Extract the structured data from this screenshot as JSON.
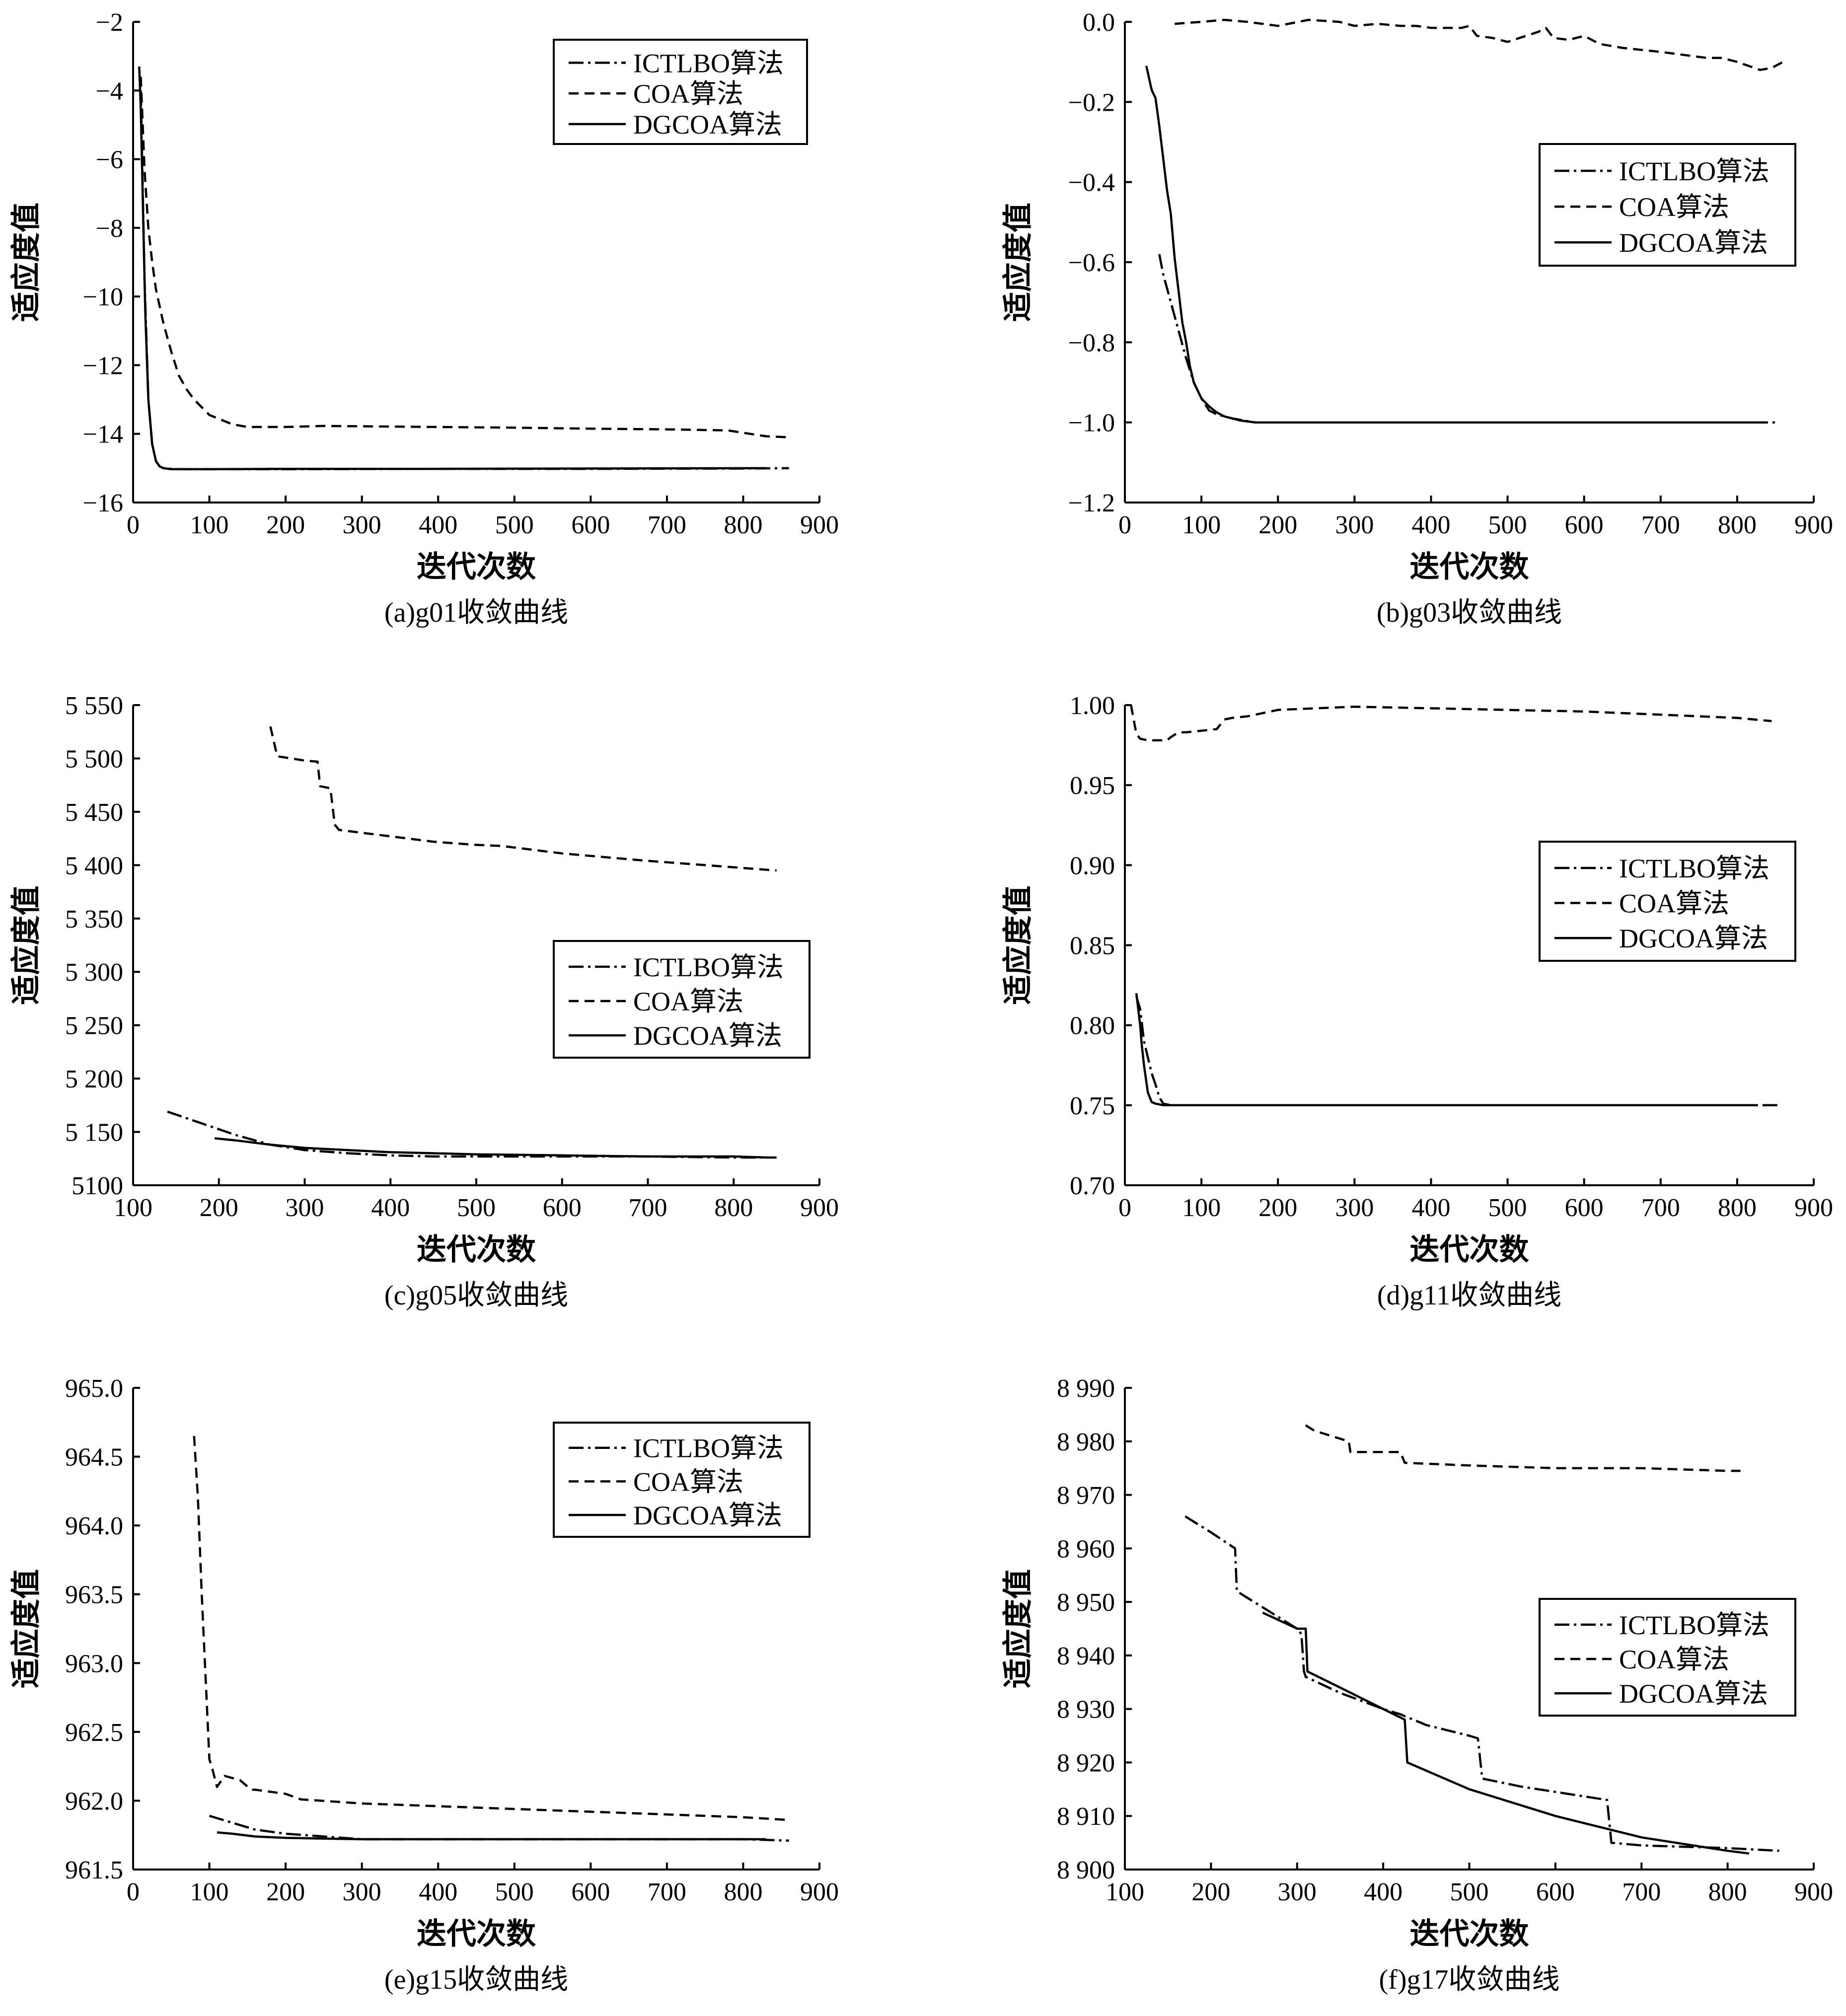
{
  "legend_labels": [
    "ICTLBO算法",
    "COA算法",
    "DGCOA算法"
  ],
  "colors": {
    "line": "#000000",
    "background": "#ffffff"
  },
  "chart_data": [
    {
      "type": "line",
      "caption": "(a)g01收敛曲线",
      "xlabel": "迭代次数",
      "ylabel": "适应度值",
      "xlim": [
        0,
        900
      ],
      "ylim": [
        -16,
        -2
      ],
      "xticks": [
        0,
        100,
        200,
        300,
        400,
        500,
        600,
        700,
        800,
        900
      ],
      "xtick_labels": [
        "0",
        "100",
        "200",
        "300",
        "400",
        "500",
        "600",
        "700",
        "800",
        "900"
      ],
      "yticks": [
        -16,
        -14,
        -12,
        -10,
        -8,
        -6,
        -4,
        -2
      ],
      "ytick_labels": [
        "−16",
        "−14",
        "−12",
        "−10",
        "−8",
        "−6",
        "−4",
        "−2"
      ],
      "legend": "top-right",
      "series": [
        {
          "name": "ICTLBO算法",
          "style": "dashdot",
          "x": [
            10,
            15,
            20,
            25,
            30,
            35,
            40,
            50,
            60,
            80,
            100,
            200,
            400,
            600,
            800,
            860
          ],
          "y": [
            -4.0,
            -9.5,
            -13.0,
            -14.3,
            -14.8,
            -14.95,
            -15.0,
            -15.02,
            -15.03,
            -15.03,
            -15.03,
            -15.03,
            -15.02,
            -15.02,
            -15.01,
            -15.0
          ]
        },
        {
          "name": "COA算法",
          "style": "dashed",
          "x": [
            10,
            15,
            20,
            25,
            30,
            40,
            50,
            60,
            70,
            80,
            100,
            130,
            150,
            200,
            250,
            300,
            400,
            500,
            600,
            700,
            780,
            800,
            830,
            860
          ],
          "y": [
            -3.6,
            -6.3,
            -8.0,
            -9.0,
            -9.8,
            -10.8,
            -11.6,
            -12.3,
            -12.7,
            -13.0,
            -13.45,
            -13.72,
            -13.8,
            -13.8,
            -13.77,
            -13.78,
            -13.8,
            -13.82,
            -13.85,
            -13.87,
            -13.9,
            -13.97,
            -14.07,
            -14.1
          ]
        },
        {
          "name": "DGCOA算法",
          "style": "solid",
          "x": [
            8,
            10,
            13,
            16,
            20,
            25,
            30,
            35,
            40,
            50,
            60,
            100,
            200,
            400,
            600,
            830
          ],
          "y": [
            -3.3,
            -4.5,
            -7.5,
            -10.5,
            -13.0,
            -14.3,
            -14.8,
            -14.95,
            -15.0,
            -15.03,
            -15.03,
            -15.03,
            -15.02,
            -15.02,
            -15.01,
            -15.0
          ]
        }
      ]
    },
    {
      "type": "line",
      "caption": "(b)g03收敛曲线",
      "xlabel": "迭代次数",
      "ylabel": "适应度值",
      "xlim": [
        0,
        900
      ],
      "ylim": [
        -1.2,
        0
      ],
      "xticks": [
        0,
        100,
        200,
        300,
        400,
        500,
        600,
        700,
        800,
        900
      ],
      "xtick_labels": [
        "0",
        "100",
        "200",
        "300",
        "400",
        "500",
        "600",
        "700",
        "800",
        "900"
      ],
      "yticks": [
        -1.2,
        -1.0,
        -0.8,
        -0.6,
        -0.4,
        -0.2,
        0.0
      ],
      "ytick_labels": [
        "−1.2",
        "−1.0",
        "−0.8",
        "−0.6",
        "−0.4",
        "−0.2",
        "0.0"
      ],
      "legend": "right",
      "series": [
        {
          "name": "ICTLBO算法",
          "style": "dashdot",
          "x": [
            45,
            50,
            60,
            70,
            80,
            90,
            100,
            110,
            120,
            140,
            170,
            200,
            250,
            400,
            600,
            800,
            855
          ],
          "y": [
            -0.58,
            -0.63,
            -0.7,
            -0.77,
            -0.84,
            -0.9,
            -0.94,
            -0.97,
            -0.98,
            -0.99,
            -1.0,
            -1.0,
            -1.0,
            -1.0,
            -1.0,
            -1.0,
            -1.0
          ]
        },
        {
          "name": "COA算法",
          "style": "dashed",
          "x": [
            65,
            100,
            130,
            160,
            200,
            240,
            280,
            300,
            330,
            360,
            380,
            400,
            440,
            450,
            460,
            480,
            500,
            540,
            550,
            560,
            580,
            600,
            620,
            650,
            700,
            760,
            780,
            800,
            830,
            845,
            860
          ],
          "y": [
            -0.005,
            0.0,
            0.005,
            0.0,
            -0.01,
            0.005,
            0.0,
            -0.01,
            -0.005,
            -0.01,
            -0.01,
            -0.015,
            -0.015,
            -0.01,
            -0.035,
            -0.04,
            -0.05,
            -0.025,
            -0.015,
            -0.04,
            -0.045,
            -0.035,
            -0.055,
            -0.065,
            -0.075,
            -0.09,
            -0.09,
            -0.1,
            -0.12,
            -0.115,
            -0.1
          ]
        },
        {
          "name": "DGCOA算法",
          "style": "solid",
          "x": [
            28,
            35,
            40,
            45,
            50,
            55,
            60,
            65,
            70,
            75,
            80,
            85,
            90,
            95,
            100,
            110,
            120,
            130,
            140,
            150,
            170,
            200,
            300,
            400,
            600,
            825
          ],
          "y": [
            -0.11,
            -0.17,
            -0.19,
            -0.26,
            -0.34,
            -0.42,
            -0.48,
            -0.59,
            -0.67,
            -0.75,
            -0.8,
            -0.86,
            -0.9,
            -0.92,
            -0.94,
            -0.96,
            -0.975,
            -0.985,
            -0.99,
            -0.995,
            -1.0,
            -1.0,
            -1.0,
            -1.0,
            -1.0,
            -1.0
          ]
        }
      ]
    },
    {
      "type": "line",
      "caption": "(c)g05收敛曲线",
      "xlabel": "迭代次数",
      "ylabel": "适应度值",
      "xlim": [
        100,
        900
      ],
      "ylim": [
        5100,
        5550
      ],
      "xticks": [
        100,
        200,
        300,
        400,
        500,
        600,
        700,
        800,
        900
      ],
      "xtick_labels": [
        "100",
        "200",
        "300",
        "400",
        "500",
        "600",
        "700",
        "800",
        "900"
      ],
      "yticks": [
        5100,
        5150,
        5200,
        5250,
        5300,
        5350,
        5400,
        5450,
        5500,
        5550
      ],
      "ytick_labels": [
        "5100",
        "5 150",
        "5 200",
        "5 250",
        "5 300",
        "5 350",
        "5 400",
        "5 450",
        "5 500",
        "5 550"
      ],
      "legend": "center-right",
      "series": [
        {
          "name": "ICTLBO算法",
          "style": "dashdot",
          "x": [
            140,
            180,
            220,
            260,
            300,
            350,
            400,
            450,
            500,
            600,
            700,
            800,
            850
          ],
          "y": [
            5169,
            5158,
            5147,
            5138,
            5133,
            5130,
            5128,
            5127,
            5127,
            5127,
            5127,
            5126,
            5126
          ]
        },
        {
          "name": "COA算法",
          "style": "dashed",
          "x": [
            260,
            268,
            300,
            315,
            318,
            330,
            335,
            340,
            400,
            450,
            500,
            530,
            600,
            700,
            800,
            850
          ],
          "y": [
            5530,
            5502,
            5498,
            5497,
            5474,
            5472,
            5438,
            5433,
            5427,
            5422,
            5419,
            5418,
            5411,
            5404,
            5398,
            5395
          ]
        },
        {
          "name": "DGCOA算法",
          "style": "solid",
          "x": [
            195,
            220,
            260,
            300,
            350,
            400,
            450,
            500,
            600,
            700,
            800,
            840
          ],
          "y": [
            5144,
            5142,
            5138,
            5135,
            5133,
            5131,
            5130,
            5129,
            5128,
            5127,
            5127,
            5126
          ]
        }
      ]
    },
    {
      "type": "line",
      "caption": "(d)g11收敛曲线",
      "xlabel": "迭代次数",
      "ylabel": "适应度值",
      "xlim": [
        0,
        900
      ],
      "ylim": [
        0.7,
        1.0
      ],
      "xticks": [
        0,
        100,
        200,
        300,
        400,
        500,
        600,
        700,
        800,
        900
      ],
      "xtick_labels": [
        "0",
        "100",
        "200",
        "300",
        "400",
        "500",
        "600",
        "700",
        "800",
        "900"
      ],
      "yticks": [
        0.7,
        0.75,
        0.8,
        0.85,
        0.9,
        0.95,
        1.0
      ],
      "ytick_labels": [
        "0.70",
        "0.75",
        "0.80",
        "0.85",
        "0.90",
        "0.95",
        "1.00"
      ],
      "legend": "right",
      "series": [
        {
          "name": "ICTLBO算法",
          "style": "dashdot",
          "x": [
            15,
            20,
            25,
            30,
            35,
            40,
            45,
            50,
            60,
            100,
            200,
            400,
            600,
            800,
            855
          ],
          "y": [
            0.818,
            0.81,
            0.79,
            0.78,
            0.77,
            0.763,
            0.755,
            0.751,
            0.75,
            0.75,
            0.75,
            0.75,
            0.75,
            0.75,
            0.75
          ]
        },
        {
          "name": "COA算法",
          "style": "dashed",
          "x": [
            8,
            15,
            20,
            30,
            40,
            50,
            55,
            60,
            70,
            80,
            100,
            120,
            130,
            140,
            160,
            200,
            250,
            300,
            400,
            500,
            600,
            700,
            800,
            845
          ],
          "y": [
            1.0,
            0.982,
            0.979,
            0.978,
            0.978,
            0.978,
            0.978,
            0.98,
            0.983,
            0.983,
            0.984,
            0.985,
            0.991,
            0.992,
            0.993,
            0.997,
            0.998,
            0.999,
            0.998,
            0.997,
            0.996,
            0.994,
            0.992,
            0.99
          ]
        },
        {
          "name": "DGCOA算法",
          "style": "solid",
          "x": [
            15,
            20,
            22,
            25,
            30,
            35,
            40,
            50,
            100,
            200,
            400,
            600,
            825
          ],
          "y": [
            0.82,
            0.8,
            0.788,
            0.775,
            0.758,
            0.752,
            0.751,
            0.75,
            0.75,
            0.75,
            0.75,
            0.75,
            0.75
          ]
        }
      ]
    },
    {
      "type": "line",
      "caption": "(e)g15收敛曲线",
      "xlabel": "迭代次数",
      "ylabel": "适应度值",
      "xlim": [
        0,
        900
      ],
      "ylim": [
        961.5,
        965.0
      ],
      "xticks": [
        0,
        100,
        200,
        300,
        400,
        500,
        600,
        700,
        800,
        900
      ],
      "xtick_labels": [
        "0",
        "100",
        "200",
        "300",
        "400",
        "500",
        "600",
        "700",
        "800",
        "900"
      ],
      "yticks": [
        961.5,
        962.0,
        962.5,
        963.0,
        963.5,
        964.0,
        964.5,
        965.0
      ],
      "ytick_labels": [
        "961.5",
        "962.0",
        "962.5",
        "963.0",
        "963.5",
        "964.0",
        "964.5",
        "965.0"
      ],
      "legend": "top-right",
      "series": [
        {
          "name": "ICTLBO算法",
          "style": "dashdot",
          "x": [
            100,
            130,
            160,
            200,
            250,
            300,
            400,
            500,
            600,
            700,
            800,
            860
          ],
          "y": [
            961.89,
            961.84,
            961.79,
            961.76,
            961.74,
            961.72,
            961.72,
            961.72,
            961.72,
            961.72,
            961.72,
            961.71
          ]
        },
        {
          "name": "COA算法",
          "style": "dashed",
          "x": [
            80,
            85,
            90,
            95,
            100,
            103,
            110,
            120,
            140,
            155,
            160,
            200,
            220,
            300,
            400,
            500,
            600,
            700,
            800,
            860
          ],
          "y": [
            964.65,
            964.2,
            963.5,
            962.9,
            962.3,
            962.25,
            962.1,
            962.18,
            962.15,
            962.08,
            962.08,
            962.05,
            962.01,
            961.98,
            961.96,
            961.94,
            961.92,
            961.9,
            961.88,
            961.86
          ]
        },
        {
          "name": "DGCOA算法",
          "style": "solid",
          "x": [
            110,
            130,
            160,
            200,
            300,
            400,
            500,
            600,
            700,
            800,
            830
          ],
          "y": [
            961.77,
            961.76,
            961.74,
            961.73,
            961.72,
            961.72,
            961.72,
            961.72,
            961.72,
            961.72,
            961.72
          ]
        }
      ]
    },
    {
      "type": "line",
      "caption": "(f)g17收敛曲线",
      "xlabel": "迭代次数",
      "ylabel": "适应度值",
      "xlim": [
        100,
        900
      ],
      "ylim": [
        8900,
        8990
      ],
      "xticks": [
        100,
        200,
        300,
        400,
        500,
        600,
        700,
        800,
        900
      ],
      "xtick_labels": [
        "100",
        "200",
        "300",
        "400",
        "500",
        "600",
        "700",
        "800",
        "900"
      ],
      "yticks": [
        8900,
        8910,
        8920,
        8930,
        8940,
        8950,
        8960,
        8970,
        8980,
        8990
      ],
      "ytick_labels": [
        "8 900",
        "8 910",
        "8 920",
        "8 930",
        "8 940",
        "8 950",
        "8 960",
        "8 970",
        "8 980",
        "8 990"
      ],
      "legend": "right",
      "series": [
        {
          "name": "ICTLBO算法",
          "style": "dashdot",
          "x": [
            170,
            200,
            228,
            230,
            260,
            300,
            305,
            308,
            310,
            350,
            400,
            420,
            450,
            500,
            510,
            515,
            560,
            620,
            660,
            665,
            700,
            800,
            860
          ],
          "y": [
            8966,
            8963,
            8960,
            8952,
            8949,
            8945,
            8944,
            8937,
            8936,
            8933,
            8930,
            8929,
            8927,
            8925,
            8924.5,
            8917,
            8915.5,
            8914,
            8913,
            8905,
            8904.5,
            8904,
            8903.5
          ]
        },
        {
          "name": "COA算法",
          "style": "dashed",
          "x": [
            310,
            320,
            340,
            360,
            362,
            400,
            420,
            425,
            500,
            600,
            700,
            800,
            815
          ],
          "y": [
            8983,
            8982,
            8981,
            8980,
            8978,
            8978,
            8978,
            8976,
            8975.5,
            8975,
            8975,
            8974.5,
            8974.5
          ]
        },
        {
          "name": "DGCOA算法",
          "style": "solid",
          "x": [
            260,
            300,
            310,
            312,
            350,
            400,
            425,
            428,
            500,
            600,
            700,
            800,
            825
          ],
          "y": [
            8948,
            8945,
            8945,
            8937,
            8934,
            8930,
            8928,
            8920,
            8915,
            8910,
            8906,
            8903.5,
            8903
          ]
        }
      ]
    }
  ]
}
